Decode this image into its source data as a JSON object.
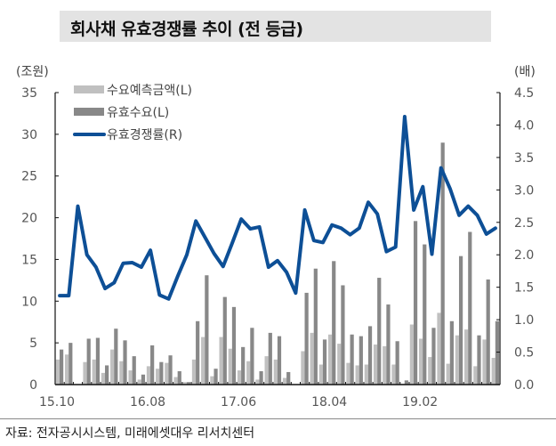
{
  "title": "회사채 유효경쟁률 추이 (전 등급)",
  "source": "자료: 전자공시시스템, 미래에셋대우 리서치센터",
  "colors": {
    "forecast_bar": "#c0c0c0",
    "effective_bar": "#888888",
    "line": "#0d4f96",
    "title_bg": "#e3e3e3"
  },
  "chart_data": {
    "type": "bar+line",
    "title": "회사채 유효경쟁률 추이 (전 등급)",
    "ylabel_left": "(조원)",
    "ylabel_right": "(배)",
    "ylim_left": [
      0,
      35
    ],
    "ylim_right": [
      0,
      4.5
    ],
    "yticks_left": [
      "0",
      "5",
      "10",
      "15",
      "20",
      "25",
      "30",
      "35"
    ],
    "yticks_right": [
      "0.0",
      "0.5",
      "1.0",
      "1.5",
      "2.0",
      "2.5",
      "3.0",
      "3.5",
      "4.0",
      "4.5"
    ],
    "xtick_labels": [
      {
        "index": 0,
        "label": "15.10"
      },
      {
        "index": 10,
        "label": "16.08"
      },
      {
        "index": 20,
        "label": "17.06"
      },
      {
        "index": 30,
        "label": "18.04"
      },
      {
        "index": 40,
        "label": "19.02"
      }
    ],
    "grid": false,
    "legend_position": "upper-left",
    "x": [
      "15.10",
      "15.11",
      "15.12",
      "16.01",
      "16.02",
      "16.03",
      "16.04",
      "16.05",
      "16.06",
      "16.07",
      "16.08",
      "16.09",
      "16.10",
      "16.11",
      "16.12",
      "17.01",
      "17.02",
      "17.03",
      "17.04",
      "17.05",
      "17.06",
      "17.07",
      "17.08",
      "17.09",
      "17.10",
      "17.11",
      "17.12",
      "18.01",
      "18.02",
      "18.03",
      "18.04",
      "18.05",
      "18.06",
      "18.07",
      "18.08",
      "18.09",
      "18.10",
      "18.11",
      "18.12",
      "19.01",
      "19.02",
      "19.03",
      "19.04",
      "19.05",
      "19.06",
      "19.07",
      "19.08",
      "19.09",
      "19.10"
    ],
    "series": [
      {
        "name": "수요예측금액(L)",
        "type": "bar",
        "axis": "left",
        "values": [
          3.0,
          3.6,
          0,
          2.7,
          3.0,
          1.4,
          4.2,
          2.8,
          1.7,
          0.6,
          2.2,
          1.9,
          2.6,
          0.9,
          0.3,
          3.0,
          5.7,
          1.0,
          5.7,
          4.3,
          1.7,
          2.8,
          0.6,
          3.4,
          3.0,
          0.8,
          0,
          4.0,
          6.2,
          2.4,
          6.0,
          4.9,
          2.6,
          2.3,
          2.4,
          4.8,
          4.6,
          2.4,
          0.1,
          7.2,
          5.5,
          3.3,
          8.6,
          2.5,
          5.9,
          6.6,
          2.2,
          5.4,
          3.2
        ]
      },
      {
        "name": "유효수요(L)",
        "type": "bar",
        "axis": "left",
        "values": [
          4.2,
          5.0,
          0,
          5.5,
          5.6,
          2.3,
          6.7,
          5.3,
          3.4,
          1.2,
          4.7,
          2.7,
          3.5,
          1.6,
          0.3,
          7.6,
          13.1,
          1.9,
          10.5,
          9.3,
          4.5,
          6.8,
          1.6,
          6.2,
          5.8,
          1.5,
          0,
          11.0,
          13.9,
          5.4,
          14.8,
          11.9,
          6.0,
          5.8,
          7.0,
          12.8,
          9.6,
          5.2,
          0.5,
          19.6,
          16.8,
          6.8,
          29.0,
          7.6,
          15.4,
          18.3,
          5.9,
          12.6,
          7.6
        ]
      },
      {
        "name": "유효경쟁률(R)",
        "type": "line",
        "axis": "right",
        "values": [
          1.37,
          1.37,
          2.75,
          2.0,
          1.81,
          1.48,
          1.57,
          1.87,
          1.88,
          1.81,
          2.07,
          1.38,
          1.32,
          1.67,
          2.0,
          2.52,
          2.27,
          2.02,
          1.82,
          2.18,
          2.55,
          2.4,
          2.43,
          1.81,
          1.91,
          1.73,
          1.41,
          2.69,
          2.22,
          2.19,
          2.46,
          2.41,
          2.31,
          2.41,
          2.81,
          2.63,
          2.05,
          2.12,
          4.13,
          2.69,
          3.05,
          2.01,
          3.34,
          3.02,
          2.61,
          2.75,
          2.61,
          2.32,
          2.41
        ]
      }
    ]
  }
}
